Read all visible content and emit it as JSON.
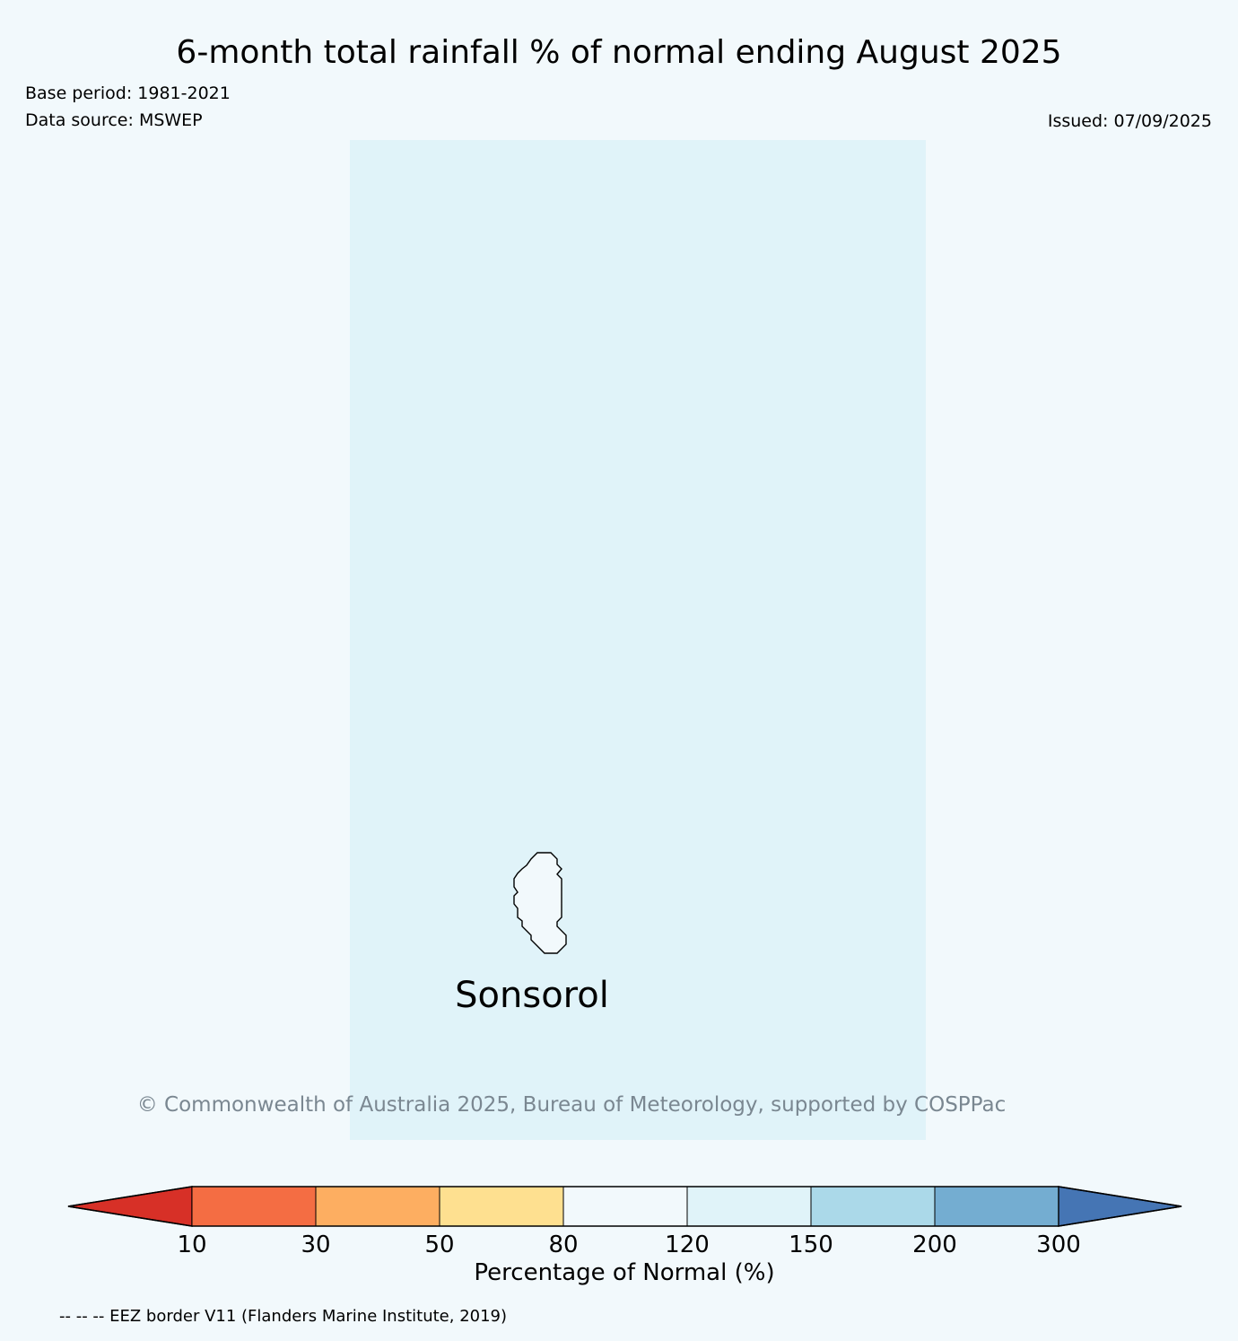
{
  "header": {
    "title": "6-month total rainfall % of normal ending August 2025",
    "base_period": "Base period: 1981-2021",
    "data_source": "Data source: MSWEP",
    "issued": "Issued: 07/09/2025"
  },
  "map": {
    "background_color": "#e0f3f9",
    "island_label": "Sonsorol",
    "copyright": "© Commonwealth of Australia 2025, Bureau of Meteorology, supported by COSPPac"
  },
  "colorbar": {
    "label": "Percentage of Normal (%)",
    "ticks": [
      "10",
      "30",
      "50",
      "80",
      "120",
      "150",
      "200",
      "300"
    ],
    "colors": [
      "#d73027",
      "#f46d43",
      "#fdae61",
      "#fee090",
      "#f2f9fc",
      "#e0f3f9",
      "#abd9e9",
      "#74add1",
      "#4575b4"
    ]
  },
  "footnote": "-- -- -- EEZ border V11 (Flanders Marine Institute, 2019)"
}
